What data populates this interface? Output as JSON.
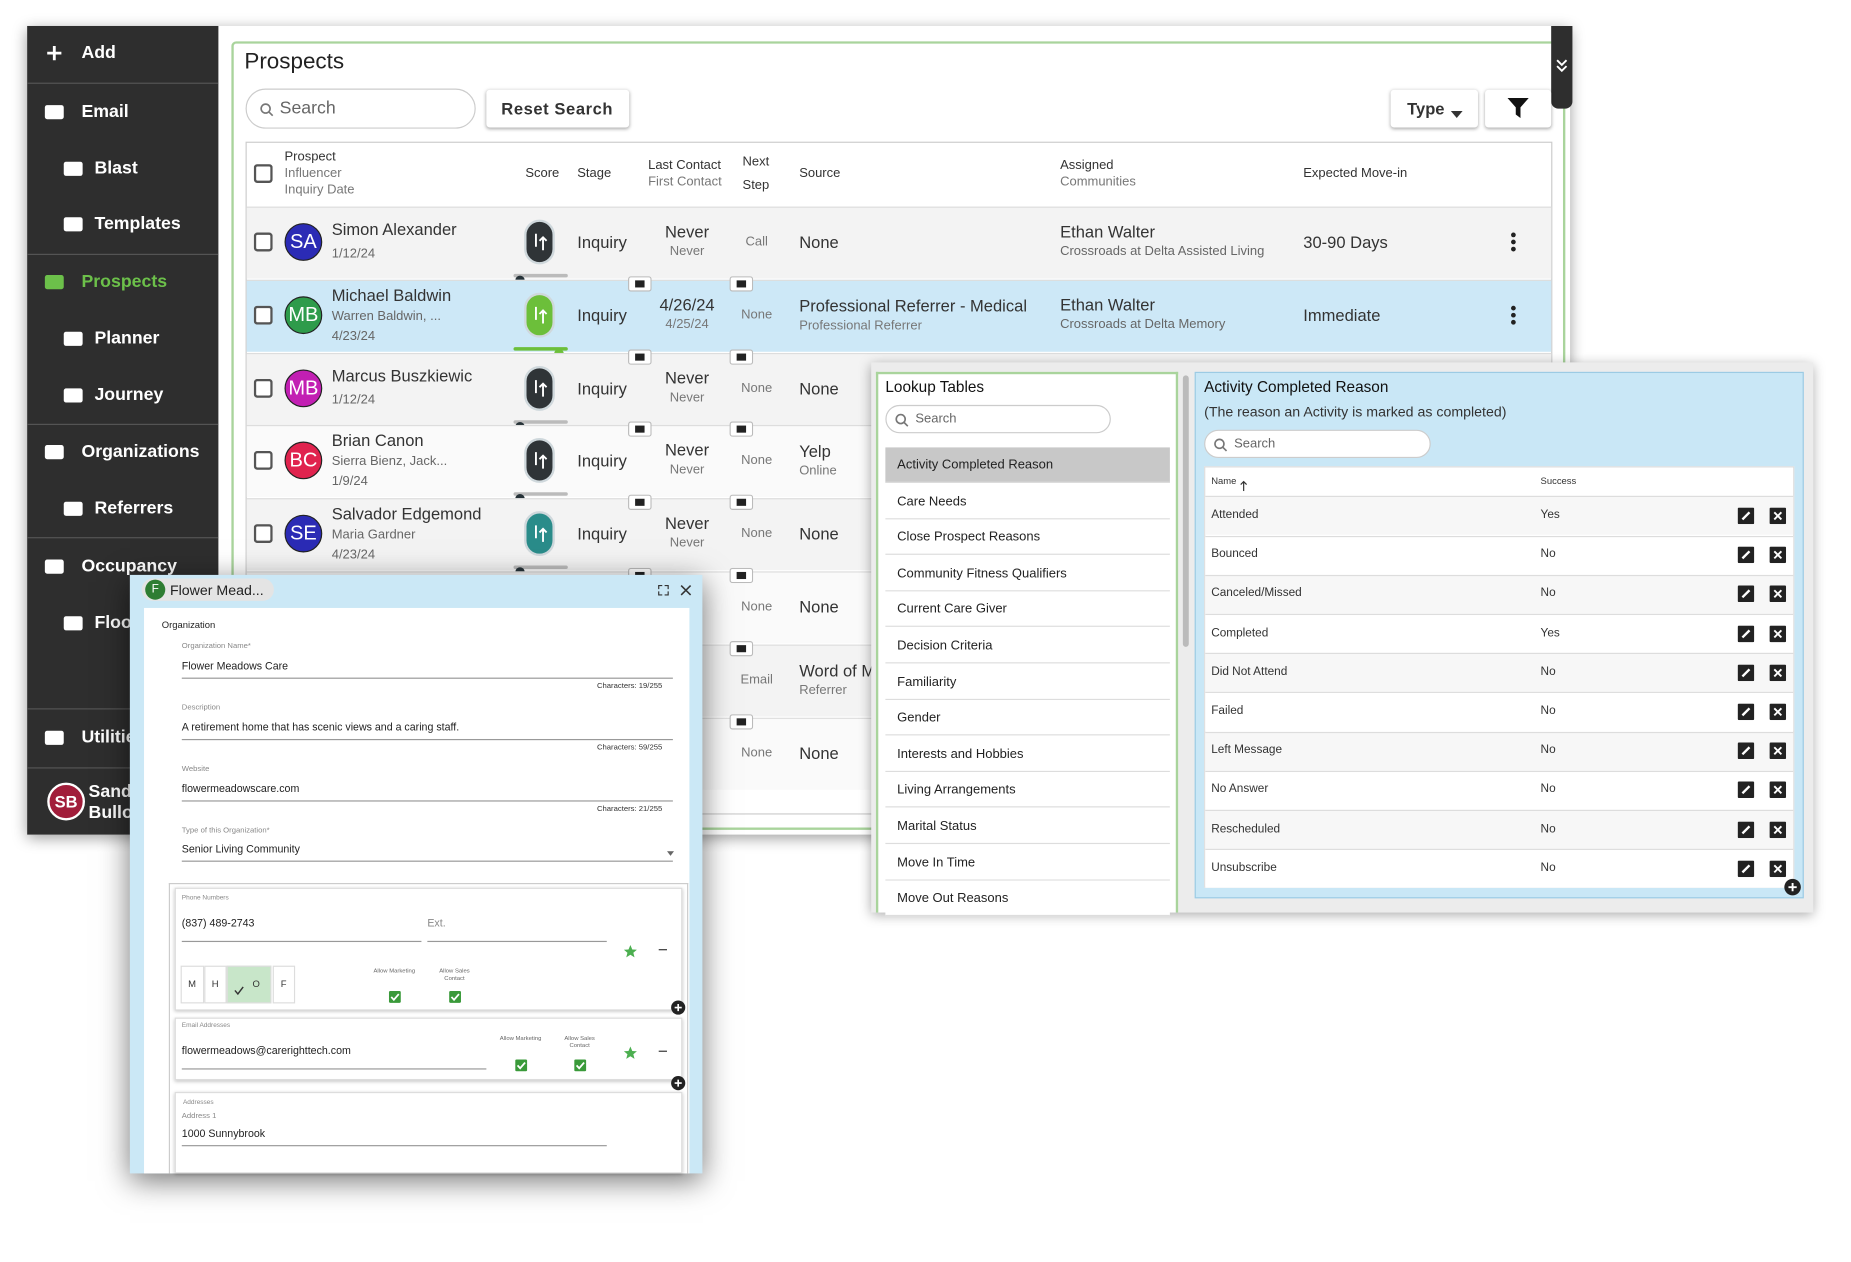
{
  "sidebar": {
    "items": [
      {
        "label": "Add",
        "level": 0
      },
      {
        "label": "Email",
        "level": 0
      },
      {
        "label": "Blast",
        "level": 1
      },
      {
        "label": "Templates",
        "level": 1
      },
      {
        "label": "Prospects",
        "level": 0,
        "active": true
      },
      {
        "label": "Planner",
        "level": 1
      },
      {
        "label": "Journey",
        "level": 1
      },
      {
        "label": "Organizations",
        "level": 0
      },
      {
        "label": "Referrers",
        "level": 1
      },
      {
        "label": "Occupancy",
        "level": 0
      },
      {
        "label": "Floo",
        "level": 1
      },
      {
        "label": "Utilitie",
        "level": 0
      }
    ],
    "user": {
      "initials": "SB",
      "name": [
        "Sand",
        "Bullo"
      ]
    }
  },
  "prospects": {
    "title": "Prospects",
    "search_placeholder": "Search",
    "reset_button": "Reset Search",
    "type_button": "Type",
    "headers": {
      "prospect": [
        "Prospect",
        "Influencer",
        "Inquiry Date"
      ],
      "score": "Score",
      "stage": "Stage",
      "contact": [
        "Last Contact",
        "First Contact"
      ],
      "next": [
        "Next",
        "Step"
      ],
      "source": "Source",
      "assigned": [
        "Assigned",
        "Communities"
      ],
      "movein": "Expected Move-in"
    },
    "rows": [
      {
        "initials": "SA",
        "color": "#2b2bb5",
        "name": "Simon Alexander",
        "sub": [
          "1/12/24"
        ],
        "score_color": "#2f3437",
        "stage": "Inquiry",
        "contact": [
          "Never",
          "Never"
        ],
        "next": "Call",
        "source": [
          "None"
        ],
        "assigned": [
          "Ethan Walter",
          "Crossroads at Delta Assisted Living"
        ],
        "movein": "30-90 Days"
      },
      {
        "initials": "MB",
        "color": "#2e9b4b",
        "name": "Michael Baldwin",
        "sub": [
          "Warren Baldwin, ...",
          "4/23/24"
        ],
        "score_color": "#6cbf3a",
        "stage": "Inquiry",
        "contact": [
          "4/26/24",
          "4/25/24"
        ],
        "next": "None",
        "source": [
          "Professional Referrer - Medical",
          "Professional Referrer"
        ],
        "assigned": [
          "Ethan Walter",
          "Crossroads at Delta Memory"
        ],
        "movein": "Immediate",
        "selected": true
      },
      {
        "initials": "MB",
        "color": "#c21fb3",
        "name": "Marcus Buszkiewic",
        "sub": [
          "1/12/24"
        ],
        "score_color": "#2f3437",
        "stage": "Inquiry",
        "contact": [
          "Never",
          "Never"
        ],
        "next": "None",
        "source": [
          "None"
        ]
      },
      {
        "initials": "BC",
        "color": "#e0234e",
        "name": "Brian Canon",
        "sub": [
          "Sierra Bienz, Jack...",
          "1/9/24"
        ],
        "score_color": "#2f3437",
        "stage": "Inquiry",
        "contact": [
          "Never",
          "Never"
        ],
        "next": "None",
        "source": [
          "Yelp",
          "Online"
        ]
      },
      {
        "initials": "SE",
        "color": "#2b2bb5",
        "name": "Salvador Edgemond",
        "sub": [
          "Maria Gardner",
          "4/23/24"
        ],
        "score_color": "#2a8c8a",
        "stage": "Inquiry",
        "contact": [
          "Never",
          "Never"
        ],
        "next": "None",
        "source": [
          "None"
        ]
      },
      {
        "next": "None",
        "source": [
          "None"
        ]
      },
      {
        "next": "Email",
        "source": [
          "Word of M",
          "Referrer"
        ]
      },
      {
        "next": "None",
        "source": [
          "None"
        ]
      }
    ]
  },
  "lookup": {
    "title": "Lookup Tables",
    "search_placeholder": "Search",
    "items": [
      {
        "label": "Activity Completed Reason",
        "selected": true
      },
      {
        "label": "Care Needs"
      },
      {
        "label": "Close Prospect Reasons"
      },
      {
        "label": "Community Fitness Qualifiers"
      },
      {
        "label": "Current Care Giver"
      },
      {
        "label": "Decision Criteria"
      },
      {
        "label": "Familiarity"
      },
      {
        "label": "Gender"
      },
      {
        "label": "Interests and Hobbies"
      },
      {
        "label": "Living Arrangements"
      },
      {
        "label": "Marital Status"
      },
      {
        "label": "Move In Time"
      },
      {
        "label": "Move Out Reasons"
      }
    ]
  },
  "reasons": {
    "title": "Activity Completed Reason",
    "subtitle": "(The reason an Activity is marked as completed)",
    "search_placeholder": "Search",
    "columns": [
      "Name",
      "Success"
    ],
    "rows": [
      [
        "Attended",
        "Yes"
      ],
      [
        "Bounced",
        "No"
      ],
      [
        "Canceled/Missed",
        "No"
      ],
      [
        "Completed",
        "Yes"
      ],
      [
        "Did Not Attend",
        "No"
      ],
      [
        "Failed",
        "No"
      ],
      [
        "Left Message",
        "No"
      ],
      [
        "No Answer",
        "No"
      ],
      [
        "Rescheduled",
        "No"
      ],
      [
        "Unsubscribe",
        "No"
      ]
    ]
  },
  "organization": {
    "initial": "F",
    "tab_title": "Flower Mead...",
    "section": "Organization",
    "fields": [
      {
        "label": "Organization Name*",
        "value": "Flower Meadows Care",
        "count": "Characters: 19/255"
      },
      {
        "label": "Description",
        "value": "A retirement home that has scenic views and a caring staff.",
        "count": "Characters: 59/255"
      },
      {
        "label": "Website",
        "value": "flowermeadowscare.com",
        "count": "Characters: 21/255"
      }
    ],
    "type_field": {
      "label": "Type of this Organization*",
      "value": "Senior Living Community"
    },
    "phone": {
      "section": "Phone Numbers",
      "number": "(837) 489-2743",
      "ext": "Ext.",
      "kinds": [
        {
          "label": "M"
        },
        {
          "label": "H"
        },
        {
          "label": "O",
          "checked": true
        },
        {
          "label": "F"
        }
      ],
      "allow": [
        "Allow Marketing",
        "Allow Sales Contact"
      ]
    },
    "email": {
      "section": "Email Addresses",
      "value": "flowermeadows@carerighttech.com",
      "allow": [
        "Allow Marketing",
        "Allow Sales Contact"
      ]
    },
    "address": {
      "section": "Addresses",
      "label": "Address 1",
      "value": "1000 Sunnybrook"
    }
  }
}
